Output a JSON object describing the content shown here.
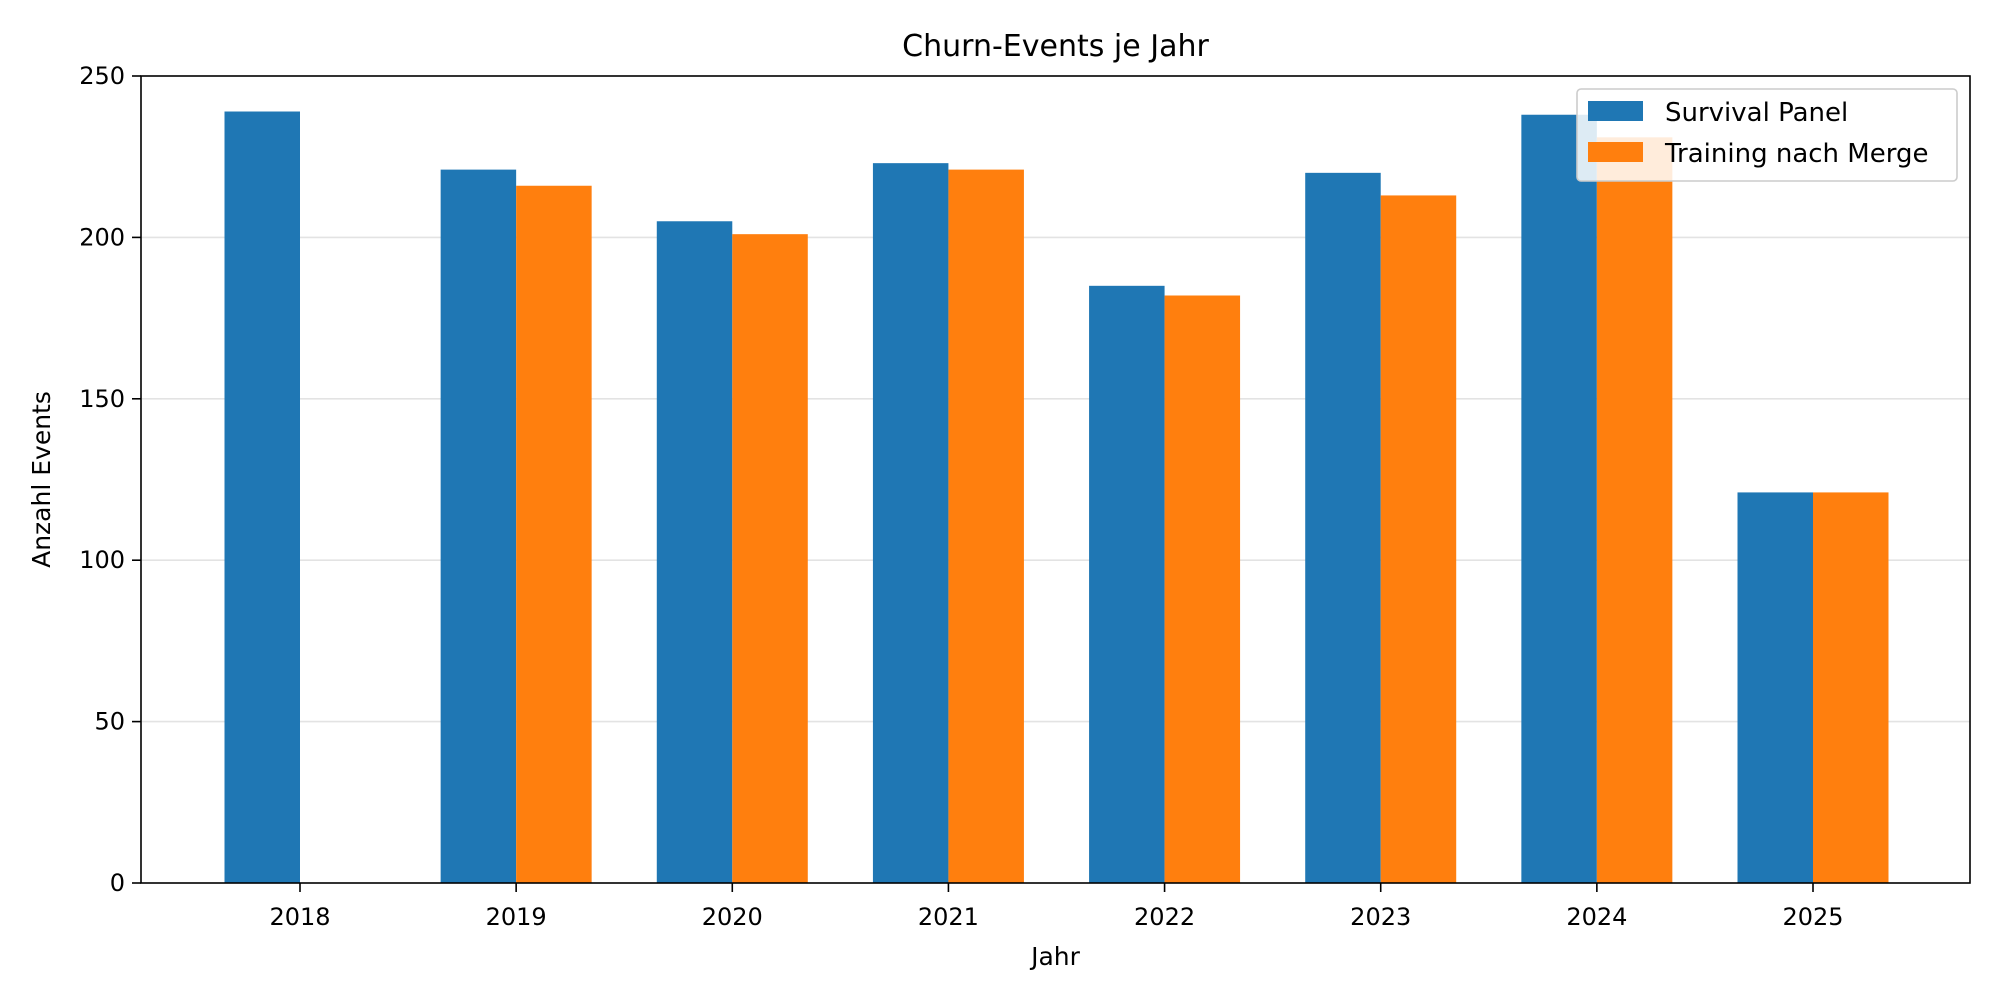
{
  "chart_data": {
    "type": "bar",
    "title": "Churn-Events je Jahr",
    "xlabel": "Jahr",
    "ylabel": "Anzahl Events",
    "categories": [
      "2018",
      "2019",
      "2020",
      "2021",
      "2022",
      "2023",
      "2024",
      "2025"
    ],
    "series": [
      {
        "name": "Survival Panel",
        "color": "#1f77b4",
        "values": [
          239,
          221,
          205,
          223,
          185,
          220,
          238,
          121
        ]
      },
      {
        "name": "Training nach Merge",
        "color": "#ff7f0e",
        "values": [
          null,
          216,
          201,
          221,
          182,
          213,
          231,
          121
        ]
      }
    ],
    "ylim": [
      0,
      250
    ],
    "yticks": [
      0,
      50,
      100,
      150,
      200,
      250
    ],
    "grid": "horizontal",
    "legend_position": "upper right"
  }
}
